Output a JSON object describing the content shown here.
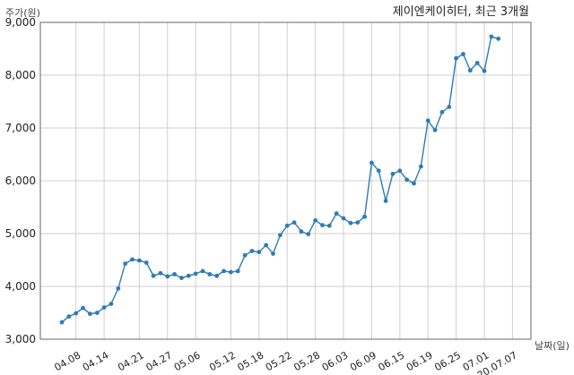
{
  "chart_data": {
    "type": "line",
    "title": "제이엔케이히터, 최근 3개월",
    "ylabel": "주가(원)",
    "xlabel": "날짜(일)",
    "ylim": [
      3000,
      9000
    ],
    "yticks": [
      3000,
      4000,
      5000,
      6000,
      7000,
      8000,
      9000
    ],
    "ytick_labels": [
      "3,000",
      "4,000",
      "5,000",
      "6,000",
      "7,000",
      "8,000",
      "9,000"
    ],
    "grid": true,
    "line_color": "#2e7bb4",
    "xticks": [
      {
        "index": 2,
        "label": "04.08"
      },
      {
        "index": 6,
        "label": "04.14"
      },
      {
        "index": 11,
        "label": "04.21"
      },
      {
        "index": 15,
        "label": "04.27"
      },
      {
        "index": 19,
        "label": "05.06"
      },
      {
        "index": 24,
        "label": "05.12"
      },
      {
        "index": 28,
        "label": "05.18"
      },
      {
        "index": 32,
        "label": "05.22"
      },
      {
        "index": 36,
        "label": "05.28"
      },
      {
        "index": 40,
        "label": "06.03"
      },
      {
        "index": 44,
        "label": "06.09"
      },
      {
        "index": 48,
        "label": "06.15"
      },
      {
        "index": 52,
        "label": "06.19"
      },
      {
        "index": 56,
        "label": "06.25"
      },
      {
        "index": 60,
        "label": "07.01"
      },
      {
        "index": 64,
        "label": "20.07.07"
      }
    ],
    "series": [
      {
        "values": [
          3320,
          3430,
          3490,
          3590,
          3480,
          3500,
          3600,
          3670,
          3960,
          4430,
          4510,
          4490,
          4450,
          4200,
          4250,
          4190,
          4230,
          4160,
          4200,
          4240,
          4290,
          4230,
          4200,
          4290,
          4270,
          4290,
          4590,
          4670,
          4650,
          4780,
          4620,
          4970,
          5150,
          5210,
          5040,
          4990,
          5250,
          5160,
          5150,
          5380,
          5290,
          5200,
          5210,
          5320,
          6340,
          6190,
          5620,
          6130,
          6190,
          6020,
          5950,
          6270,
          7140,
          6960,
          7300,
          7400,
          8320,
          8400,
          8090,
          8230,
          8080,
          8730,
          8690
        ]
      }
    ]
  }
}
